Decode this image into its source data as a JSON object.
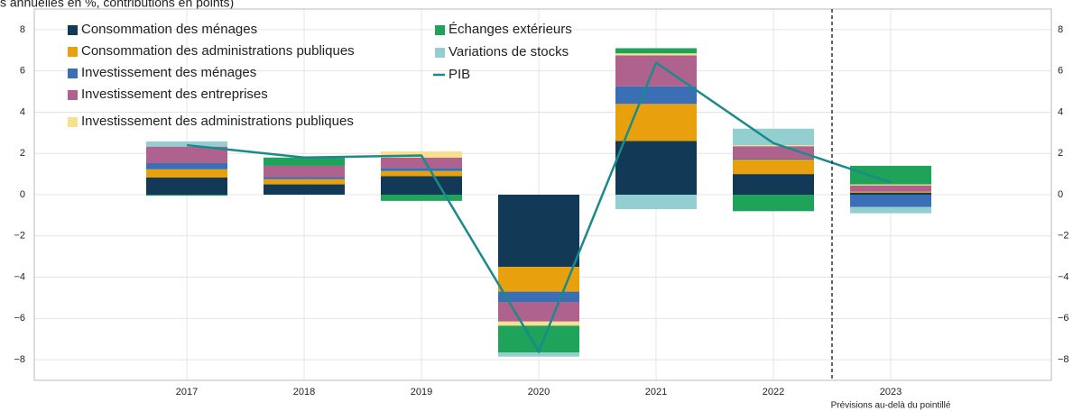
{
  "chart_data": {
    "type": "bar",
    "stacked": true,
    "title": "s annuelles en %, contributions en points)",
    "annotation": "Prévisions au-delà du pointillé",
    "categories": [
      "2017",
      "2018",
      "2019",
      "2020",
      "2021",
      "2022",
      "2023"
    ],
    "series": [
      {
        "name": "Consommation des ménages",
        "color": "#123a57",
        "values": [
          0.83,
          0.5,
          0.9,
          -3.5,
          2.6,
          1.0,
          0.1
        ]
      },
      {
        "name": "Consommation des administrations publiques",
        "color": "#e8a10c",
        "values": [
          0.4,
          0.25,
          0.25,
          -1.2,
          1.8,
          0.7,
          0.05
        ]
      },
      {
        "name": "Investissement des ménages",
        "color": "#3a6eb5",
        "values": [
          0.3,
          0.1,
          0.15,
          -0.5,
          0.85,
          0.05,
          -0.6
        ]
      },
      {
        "name": "Investissement des entreprises",
        "color": "#b0628f",
        "values": [
          0.8,
          0.55,
          0.5,
          -0.95,
          1.5,
          0.6,
          0.3
        ]
      },
      {
        "name": "Investissement des administrations publiques",
        "color": "#f7e08e",
        "values": [
          0,
          0,
          0.3,
          -0.2,
          0.1,
          0.05,
          0.05
        ]
      },
      {
        "name": "Échanges extérieurs",
        "color": "#1fa35a",
        "values": [
          -0.05,
          0.4,
          -0.3,
          -1.3,
          0.25,
          -0.8,
          0.9
        ]
      },
      {
        "name": "Variations de stocks",
        "color": "#93cfd0",
        "values": [
          0.25,
          0,
          0,
          -0.2,
          -0.7,
          0.8,
          -0.3
        ]
      },
      {
        "name": "PIB",
        "type": "line",
        "color": "#1a8a8a",
        "values": [
          2.4,
          1.8,
          1.9,
          -7.6,
          6.4,
          2.5,
          0.6
        ]
      }
    ],
    "ylim": [
      -9,
      9
    ],
    "yticks": [
      {
        "value": -8,
        "label": "−8"
      },
      {
        "value": -6,
        "label": "−6"
      },
      {
        "value": -4,
        "label": "−4"
      },
      {
        "value": -2,
        "label": "−2"
      },
      0,
      2,
      4,
      6,
      8
    ],
    "grid": true
  }
}
